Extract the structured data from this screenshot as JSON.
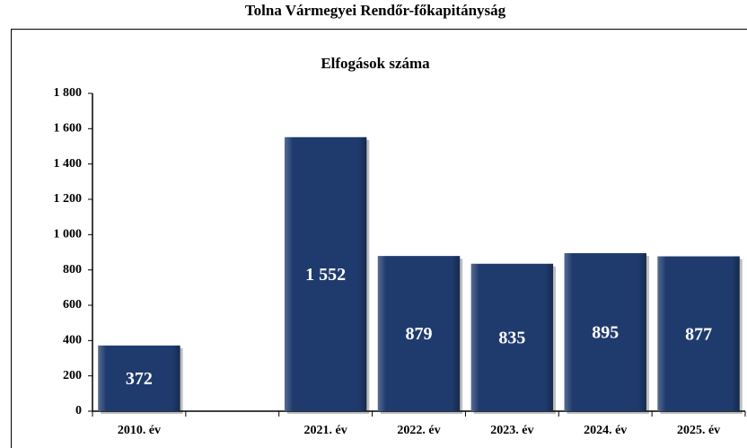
{
  "chart_data": {
    "type": "bar",
    "title": "Tolna Vármegyei Rendőr-főkapitányság",
    "subtitle": "Elfogások száma",
    "categories": [
      "2010. év",
      null,
      "2021. év",
      "2022. év",
      "2023. év",
      "2024. év",
      "2025. év"
    ],
    "values": [
      372,
      null,
      1552,
      879,
      835,
      895,
      877
    ],
    "value_labels": [
      "372",
      null,
      "1 552",
      "879",
      "835",
      "895",
      "877"
    ],
    "color": "#1f3b6e",
    "ylim": [
      0,
      1800
    ],
    "yticks": [
      0,
      200,
      400,
      600,
      800,
      {
        "value": 1000,
        "label": "1 000"
      },
      {
        "value": 1200,
        "label": "1 200"
      },
      {
        "value": 1400,
        "label": "1 400"
      },
      {
        "value": 1600,
        "label": "1 600"
      },
      {
        "value": 1800,
        "label": "1 800"
      }
    ],
    "grid": false
  }
}
